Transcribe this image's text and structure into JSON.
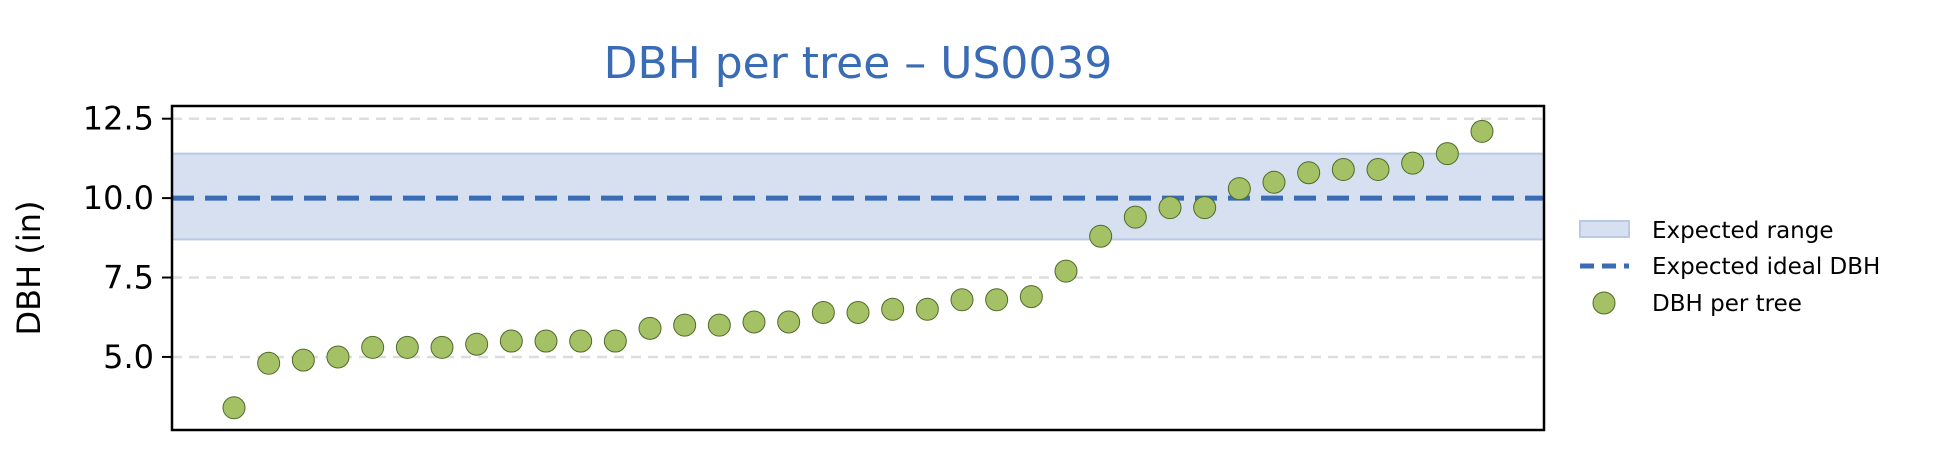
{
  "chart_data": {
    "type": "scatter",
    "title": "DBH per tree – US0039",
    "xlabel": "",
    "ylabel": "DBH (in)",
    "ylim": [
      2.7,
      12.9
    ],
    "yticks": [
      "5.0",
      "7.5",
      "10.0",
      "12.5"
    ],
    "grid": "horizontal dashed",
    "legend_position": "right",
    "expected_range": {
      "label": "Expected range",
      "min": 8.7,
      "max": 11.4
    },
    "expected_ideal": {
      "label": "Expected ideal DBH",
      "value": 10.0
    },
    "series": [
      {
        "name": "DBH per tree",
        "values": [
          3.4,
          4.8,
          4.9,
          5.0,
          5.3,
          5.3,
          5.3,
          5.4,
          5.5,
          5.5,
          5.5,
          5.5,
          5.9,
          6.0,
          6.0,
          6.1,
          6.1,
          6.4,
          6.4,
          6.5,
          6.5,
          6.8,
          6.8,
          6.9,
          7.7,
          8.8,
          9.4,
          9.7,
          9.7,
          10.3,
          10.5,
          10.8,
          10.9,
          10.9,
          11.1,
          11.4,
          12.1
        ]
      }
    ],
    "colors": {
      "title": "#3a6bb5",
      "band_fill": "#d6e0f0",
      "band_edge": "#b8cae6",
      "ideal_line": "#3a6bb5",
      "point_fill": "#a5c165",
      "point_edge": "#4f6b2a",
      "grid": "#dddddd"
    }
  }
}
